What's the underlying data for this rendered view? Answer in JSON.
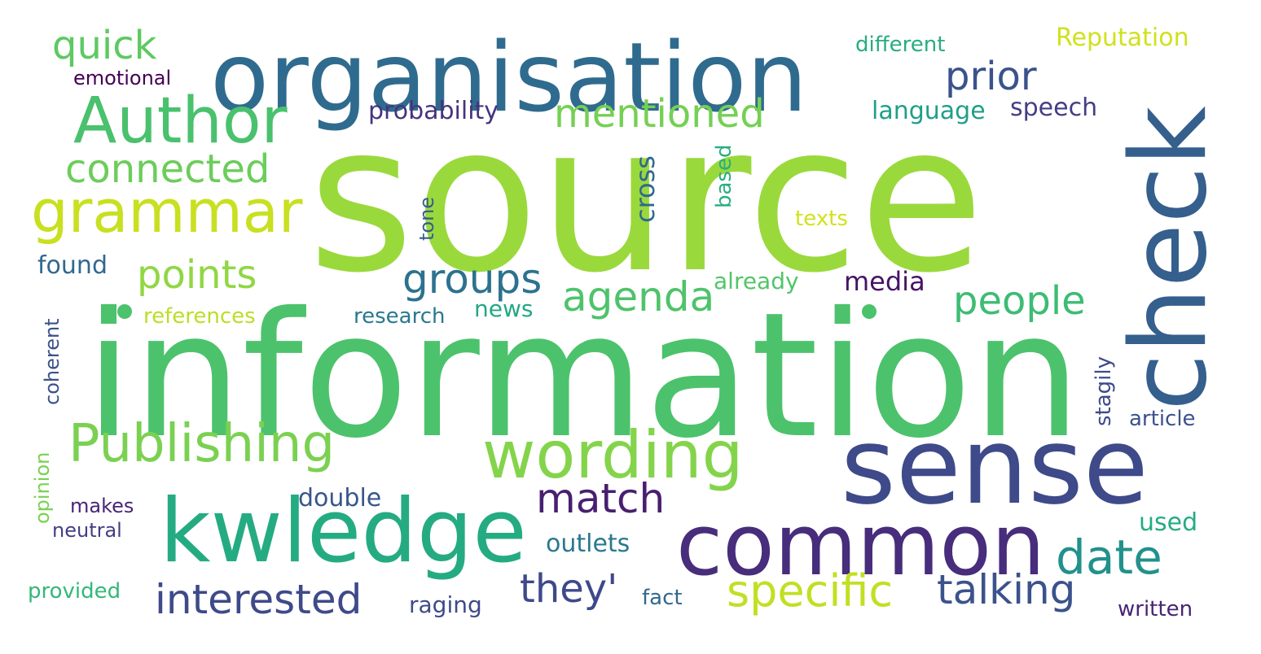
{
  "words": [
    {
      "text": "source",
      "color": "#9ad93c"
    },
    {
      "text": "information",
      "color": "#4cc26c"
    },
    {
      "text": "organisation",
      "color": "#2f6b8e"
    },
    {
      "text": "check",
      "color": "#355f8d"
    },
    {
      "text": "sense",
      "color": "#3e4a89"
    },
    {
      "text": "common",
      "color": "#472d7b"
    },
    {
      "text": "kwledge",
      "color": "#25ab82"
    },
    {
      "text": "Author",
      "color": "#4ac16d"
    },
    {
      "text": "grammar",
      "color": "#c8e020"
    },
    {
      "text": "wording",
      "color": "#84d44b"
    },
    {
      "text": "Publishing",
      "color": "#7ad151"
    },
    {
      "text": "quick",
      "color": "#5ec962"
    },
    {
      "text": "connected",
      "color": "#6ccd5a"
    },
    {
      "text": "points",
      "color": "#90d743"
    },
    {
      "text": "mentioned",
      "color": "#75d054"
    },
    {
      "text": "prior",
      "color": "#3b528b"
    },
    {
      "text": "groups",
      "color": "#2c728e"
    },
    {
      "text": "agenda",
      "color": "#4ec36b"
    },
    {
      "text": "people",
      "color": "#3dbc74"
    },
    {
      "text": "date",
      "color": "#21918c"
    },
    {
      "text": "match",
      "color": "#481f70"
    },
    {
      "text": "specific",
      "color": "#c2df23"
    },
    {
      "text": "talking",
      "color": "#3b528b"
    },
    {
      "text": "they'",
      "color": "#3e4989"
    },
    {
      "text": "interested",
      "color": "#3e4a89"
    },
    {
      "text": "different",
      "color": "#27ad81"
    },
    {
      "text": "Reputation",
      "color": "#d0e11c"
    },
    {
      "text": "emotional",
      "color": "#440154"
    },
    {
      "text": "probability",
      "color": "#46337e"
    },
    {
      "text": "language",
      "color": "#1f9f88"
    },
    {
      "text": "speech",
      "color": "#433e85"
    },
    {
      "text": "cross",
      "color": "#31688e"
    },
    {
      "text": "based",
      "color": "#28ae80"
    },
    {
      "text": "texts",
      "color": "#d2e21b"
    },
    {
      "text": "tone",
      "color": "#365c8d"
    },
    {
      "text": "found",
      "color": "#31688e"
    },
    {
      "text": "already",
      "color": "#52c569"
    },
    {
      "text": "media",
      "color": "#471365"
    },
    {
      "text": "references",
      "color": "#bade28"
    },
    {
      "text": "research",
      "color": "#2a788e"
    },
    {
      "text": "news",
      "color": "#22a884"
    },
    {
      "text": "coherent",
      "color": "#3b528b"
    },
    {
      "text": "stagily",
      "color": "#3e4a89"
    },
    {
      "text": "article",
      "color": "#3b528b"
    },
    {
      "text": "opinion",
      "color": "#7ad151"
    },
    {
      "text": "double",
      "color": "#39568c"
    },
    {
      "text": "makes",
      "color": "#482576"
    },
    {
      "text": "neutral",
      "color": "#433e85"
    },
    {
      "text": "outlets",
      "color": "#2a788e"
    },
    {
      "text": "used",
      "color": "#25ab82"
    },
    {
      "text": "provided",
      "color": "#35b779"
    },
    {
      "text": "raging",
      "color": "#3e4a89"
    },
    {
      "text": "fact",
      "color": "#31688e"
    },
    {
      "text": "written",
      "color": "#482475"
    }
  ],
  "dots": [
    {
      "color": "#4cc26c"
    },
    {
      "color": "#4cc26c"
    }
  ]
}
